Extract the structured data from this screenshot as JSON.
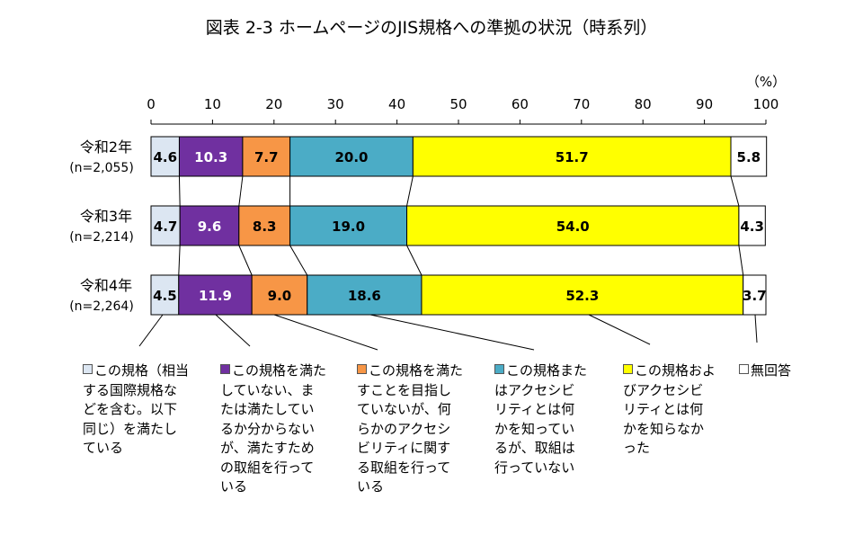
{
  "chart_data": {
    "type": "bar",
    "orientation": "horizontal-stacked-100",
    "title": "図表 2-3 ホームページのJIS規格への準拠の状況（時系列）",
    "unit_label": "（%）",
    "xlim": [
      0,
      100
    ],
    "xticks": [
      0,
      10,
      20,
      30,
      40,
      50,
      60,
      70,
      80,
      90,
      100
    ],
    "categories": [
      {
        "label": "令和2年",
        "n": "(n=2,055)"
      },
      {
        "label": "令和3年",
        "n": "(n=2,214)"
      },
      {
        "label": "令和4年",
        "n": "(n=2,264)"
      }
    ],
    "series": [
      {
        "name": "この規格（相当\nする国際規格な\nどを含む。以下\n同じ）を満たし\nている",
        "color": "#dce6f2",
        "text_color": "#000000",
        "values": [
          4.6,
          4.7,
          4.5
        ]
      },
      {
        "name": "この規格を満た\nしていない、ま\nたは満たしてい\nるか分からない\nが、満たすため\nの取組を行って\nいる",
        "color": "#7030a0",
        "text_color": "#ffffff",
        "values": [
          10.3,
          9.6,
          11.9
        ]
      },
      {
        "name": "この規格を満た\nすことを目指し\nていないが、何\nらかのアクセシ\nビリティに関す\nる取組を行って\nいる",
        "color": "#f79646",
        "text_color": "#000000",
        "values": [
          7.7,
          8.3,
          9.0
        ]
      },
      {
        "name": "この規格また\nはアクセシビ\nリティとは何\nかを知ってい\nるが、取組は\n行っていない",
        "color": "#4bacc6",
        "text_color": "#000000",
        "values": [
          20.0,
          19.0,
          18.6
        ]
      },
      {
        "name": "この規格およ\nびアクセシビ\nリティとは何\nかを知らなか\nった",
        "color": "#ffff00",
        "text_color": "#000000",
        "values": [
          51.7,
          54.0,
          52.3
        ]
      },
      {
        "name": "無回答",
        "color": "#ffffff",
        "text_color": "#000000",
        "values": [
          5.8,
          4.3,
          3.7
        ]
      }
    ],
    "legend_position": "bottom"
  }
}
